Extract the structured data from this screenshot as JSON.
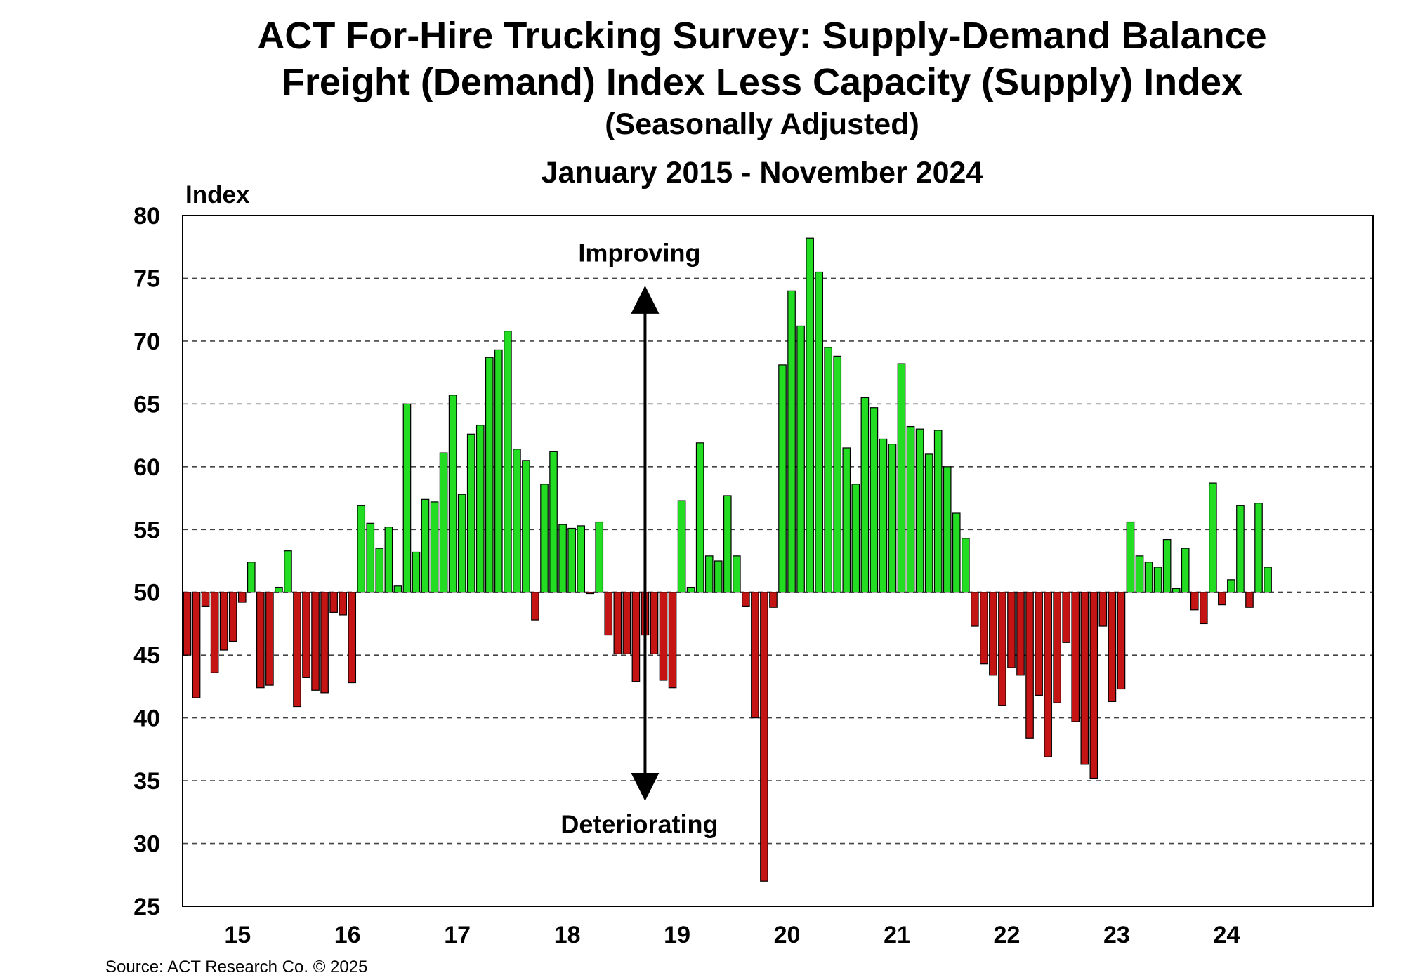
{
  "titles": {
    "line1": "ACT For-Hire Trucking Survey: Supply-Demand Balance",
    "line2": "Freight (Demand) Index Less Capacity (Supply) Index",
    "line3": "(Seasonally Adjusted)",
    "line4": "January 2015 - November 2024"
  },
  "source": "Source: ACT Research Co. © 2025",
  "colors": {
    "positive": "#22dd22",
    "negative": "#c41414",
    "grid": "#000000"
  },
  "chart_data": {
    "type": "bar",
    "title": "ACT For-Hire Trucking Survey: Supply-Demand Balance",
    "subtitle": "Freight (Demand) Index Less Capacity (Supply) Index (Seasonally Adjusted)",
    "period": "January 2015 - November 2024",
    "ylabel": "Index",
    "xlabel": "",
    "ylim": [
      25,
      80
    ],
    "yticks": [
      25,
      30,
      35,
      40,
      45,
      50,
      55,
      60,
      65,
      70,
      75,
      80
    ],
    "baseline": 50,
    "grid": "dashed horizontal",
    "x_tick_labels": [
      "15",
      "16",
      "17",
      "18",
      "19",
      "20",
      "21",
      "22",
      "23",
      "24"
    ],
    "annotations": {
      "up": "Improving",
      "down": "Deteriorating"
    },
    "start": "2015-01",
    "end": "2024-11",
    "values": [
      45.0,
      41.6,
      48.9,
      43.6,
      45.4,
      46.1,
      49.2,
      52.4,
      42.4,
      42.6,
      50.4,
      53.3,
      40.9,
      43.2,
      42.2,
      42.0,
      48.4,
      48.2,
      42.8,
      56.9,
      55.5,
      53.5,
      55.2,
      50.5,
      65.0,
      53.2,
      57.4,
      57.2,
      61.1,
      65.7,
      57.8,
      62.6,
      63.3,
      68.7,
      69.3,
      70.8,
      61.4,
      60.5,
      47.8,
      58.6,
      61.2,
      55.4,
      55.1,
      55.3,
      49.9,
      55.6,
      46.6,
      45.1,
      45.1,
      42.9,
      46.6,
      45.1,
      43.0,
      42.4,
      57.3,
      50.4,
      61.9,
      52.9,
      52.5,
      57.7,
      52.9,
      48.9,
      40.0,
      27.0,
      48.8,
      68.1,
      74.0,
      71.2,
      78.2,
      75.5,
      69.5,
      68.8,
      61.5,
      58.6,
      65.5,
      64.7,
      62.2,
      61.8,
      68.2,
      63.2,
      63.0,
      61.0,
      62.9,
      60.0,
      56.3,
      54.3,
      47.3,
      44.3,
      43.4,
      41.0,
      44.0,
      43.4,
      38.4,
      41.8,
      36.9,
      41.2,
      46.0,
      39.7,
      36.3,
      35.2,
      47.3,
      41.3,
      42.3,
      55.6,
      52.9,
      52.4,
      52.0,
      54.2,
      50.3,
      53.5,
      48.6,
      47.5,
      58.7,
      49.0,
      51.0,
      56.9,
      48.8,
      57.1,
      52.0
    ]
  }
}
